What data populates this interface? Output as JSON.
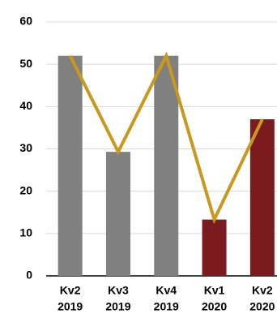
{
  "chart_data": {
    "type": "bar",
    "categories": [
      [
        "Kv2",
        "2019"
      ],
      [
        "Kv3",
        "2019"
      ],
      [
        "Kv4",
        "2019"
      ],
      [
        "Kv1",
        "2020"
      ],
      [
        "Kv2",
        "2020"
      ]
    ],
    "series": [
      {
        "type": "bar",
        "colors": [
          "#808080",
          "#808080",
          "#808080",
          "#7b1a1f",
          "#7b1a1f"
        ],
        "values": [
          52,
          29.3,
          52,
          13.3,
          37
        ]
      },
      {
        "type": "line",
        "color": "#c9981e",
        "values": [
          52,
          29.3,
          52,
          13.3,
          37
        ]
      }
    ],
    "ylim": [
      0,
      60
    ],
    "yticks": [
      0,
      10,
      20,
      30,
      40,
      50,
      60
    ],
    "grid": true
  }
}
